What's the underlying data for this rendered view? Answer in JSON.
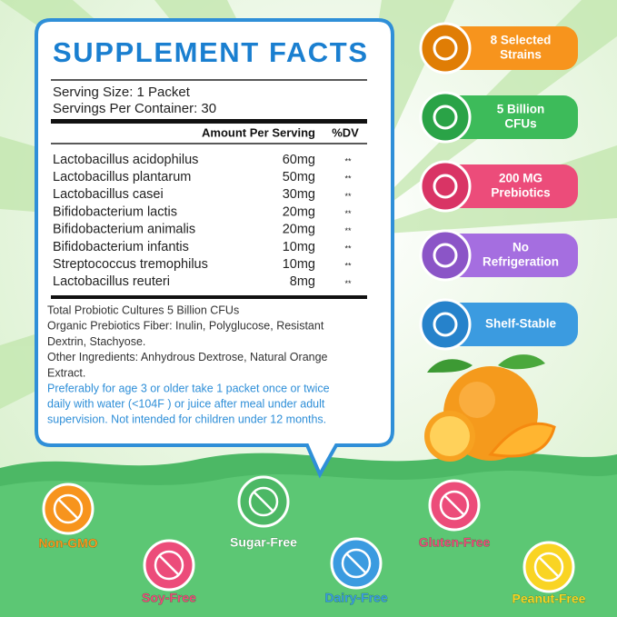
{
  "facts": {
    "title": "SUPPLEMENT FACTS",
    "serving_size": "Serving Size: 1 Packet",
    "servings_per_container": "Servings Per Container:  30",
    "header": [
      "Amount Per Serving",
      "%DV"
    ],
    "rows": [
      [
        "Lactobacillus acidophilus",
        "60mg",
        "**"
      ],
      [
        "Lactobacillus plantarum",
        "50mg",
        "**"
      ],
      [
        "Lactobacillus casei",
        "30mg",
        "**"
      ],
      [
        "Bifidobacterium lactis",
        "20mg",
        "**"
      ],
      [
        "Bifidobacterium animalis",
        "20mg",
        "**"
      ],
      [
        "Bifidobacterium infantis",
        "10mg",
        "**"
      ],
      [
        "Streptococcus tremophilus",
        "10mg",
        "**"
      ],
      [
        "Lactobacillus reuteri",
        "8mg",
        "**"
      ]
    ],
    "notes": [
      "Total Probiotic Cultures 5 Billion CFUs",
      "Organic Prebiotics Fiber: Inulin, Polyglucose, Resistant",
      "Dextrin, Stachyose.",
      "Other Ingredients: Anhydrous Dextrose, Natural Orange",
      "Extract."
    ],
    "directions": [
      "Preferably for age 3 or older take 1 packet once or twice",
      "daily with water (<104F ) or juice after meal under adult",
      "supervision. Not intended for children under 12 months."
    ]
  },
  "badges": [
    [
      "8 Selected",
      "Strains"
    ],
    [
      "5 Billion",
      "CFUs"
    ],
    [
      "200 MG",
      "Prebiotics"
    ],
    [
      "No",
      "Refrigeration"
    ],
    [
      "Shelf-Stable"
    ]
  ],
  "free_from": [
    "Non-GMO",
    "Soy-Free",
    "Sugar-Free",
    "Dairy-Free",
    "Gluten-Free",
    "Peanut-Free"
  ]
}
